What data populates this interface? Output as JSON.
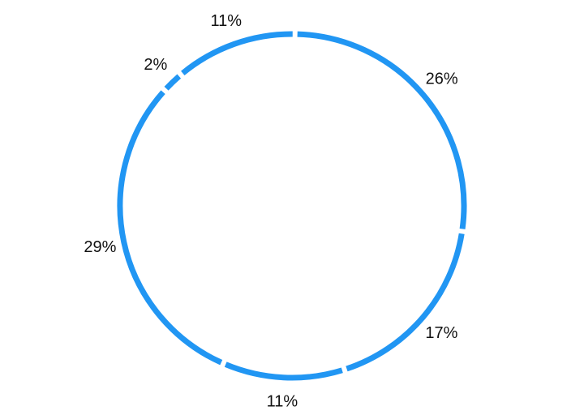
{
  "chart_data": {
    "type": "pie",
    "style": "ring",
    "title": "",
    "slices": [
      {
        "value": 26,
        "label": "26%"
      },
      {
        "value": 17,
        "label": "17%"
      },
      {
        "value": 11,
        "label": "11%"
      },
      {
        "value": 29,
        "label": "29%"
      },
      {
        "value": 2,
        "label": "2%"
      },
      {
        "value": 11,
        "label": "11%"
      }
    ],
    "start_angle": "top",
    "direction": "clockwise",
    "legend": "none"
  },
  "colors": {
    "slice": "#2196F3",
    "label": "#111111",
    "background": "#ffffff"
  }
}
